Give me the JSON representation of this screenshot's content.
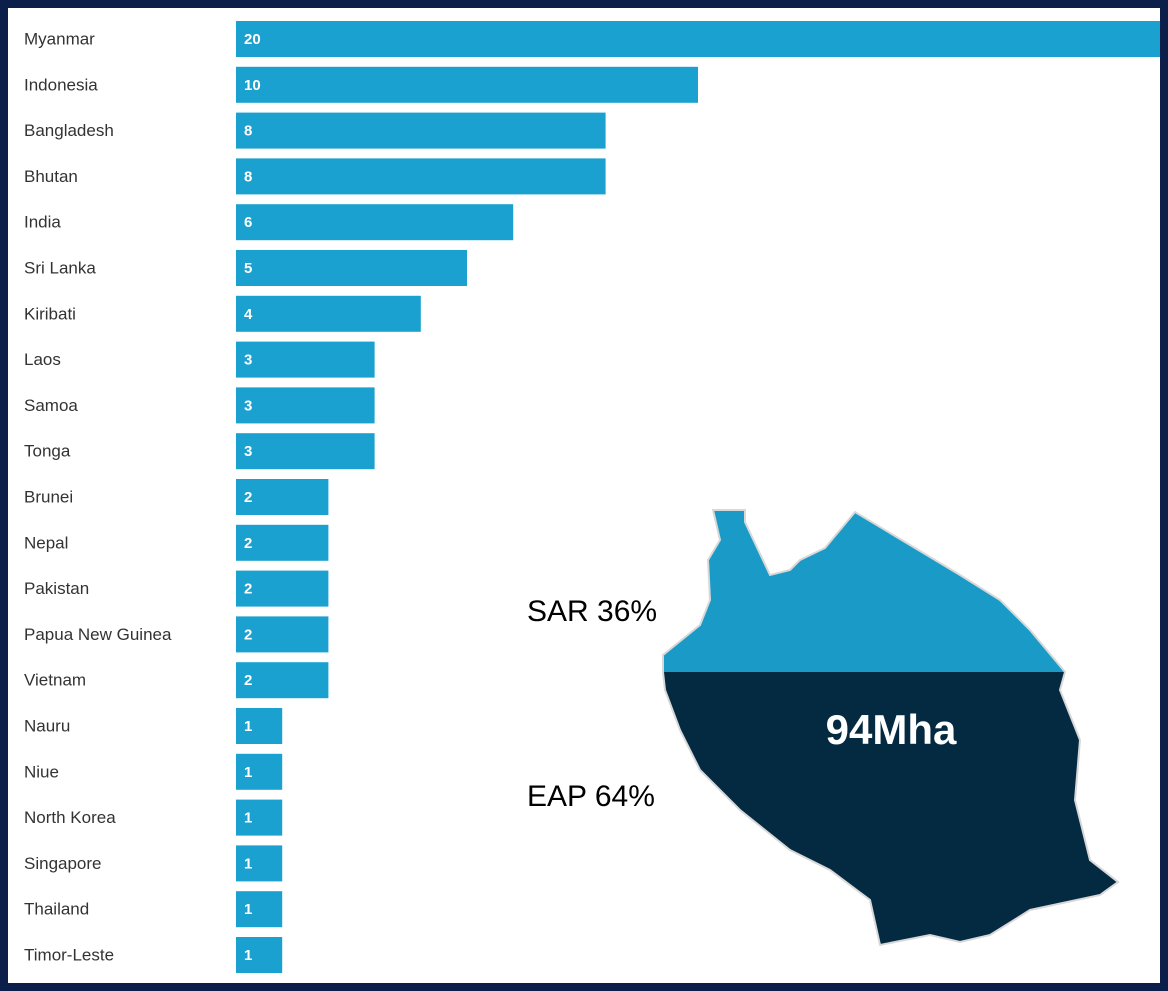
{
  "chart_data": {
    "type": "bar",
    "orientation": "horizontal",
    "categories": [
      "Myanmar",
      "Indonesia",
      "Bangladesh",
      "Bhutan",
      "India",
      "Sri Lanka",
      "Kiribati",
      "Laos",
      "Samoa",
      "Tonga",
      "Brunei",
      "Nepal",
      "Pakistan",
      "Papua New Guinea",
      "Vietnam",
      "Nauru",
      "Niue",
      "North Korea",
      "Singapore",
      "Thailand",
      "Timor-Leste"
    ],
    "values": [
      20,
      10,
      8,
      8,
      6,
      5,
      4,
      3,
      3,
      3,
      2,
      2,
      2,
      2,
      2,
      1,
      1,
      1,
      1,
      1,
      1
    ],
    "color": "#1ba1cf",
    "xlim": [
      0,
      20
    ],
    "annotations": [
      "SAR 36%",
      "EAP 64%",
      "94Mha"
    ]
  }
}
